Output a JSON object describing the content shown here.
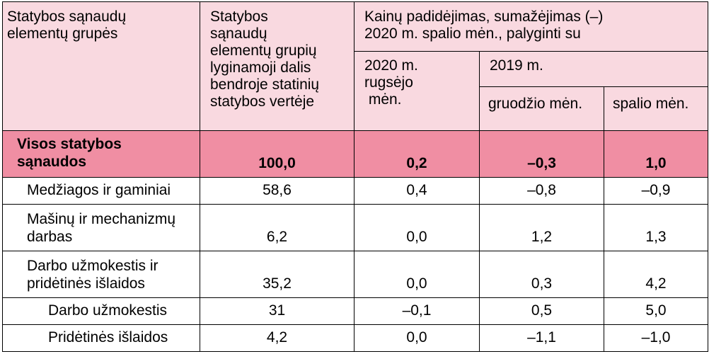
{
  "header": {
    "col1": [
      "Statybos sąnaudų",
      "elementų grupės"
    ],
    "col2": [
      "Statybos",
      "sąnaudų",
      "elementų grupių",
      "lyginamoji dalis",
      "bendroje statinių",
      "statybos vertėje"
    ],
    "change_title": [
      "Kainų padidėjimas, sumažėjimas (–)",
      "2020 m. spalio mėn., palyginti su"
    ],
    "sep2020": [
      "2020 m.",
      "rugsėjo",
      " mėn."
    ],
    "year2019": "2019 m.",
    "dec": "gruodžio mėn.",
    "oct": "spalio mėn."
  },
  "total": {
    "label": [
      "Visos statybos",
      "sąnaudos"
    ],
    "share": "100,0",
    "sep": "0,2",
    "dec": "–0,3",
    "oct": "1,0"
  },
  "rows": [
    {
      "label": [
        "Medžiagos ir gaminiai"
      ],
      "share": "58,6",
      "sep": "0,4",
      "dec": "–0,8",
      "oct": "–0,9"
    },
    {
      "label": [
        "Mašinų ir mechanizmų",
        "darbas"
      ],
      "share": "6,2",
      "sep": "0,0",
      "dec": "1,2",
      "oct": "1,3"
    },
    {
      "label": [
        "Darbo užmokestis ir",
        "pridėtinės išlaidos"
      ],
      "share": "35,2",
      "sep": "0,0",
      "dec": "0,3",
      "oct": "4,2"
    },
    {
      "label": [
        "Darbo užmokestis"
      ],
      "share": "31",
      "sep": "–0,1",
      "dec": "0,5",
      "oct": "5,0"
    },
    {
      "label": [
        "Pridėtinės išlaidos"
      ],
      "share": "4,2",
      "sep": "0,0",
      "dec": "–1,1",
      "oct": "–1,0"
    }
  ]
}
